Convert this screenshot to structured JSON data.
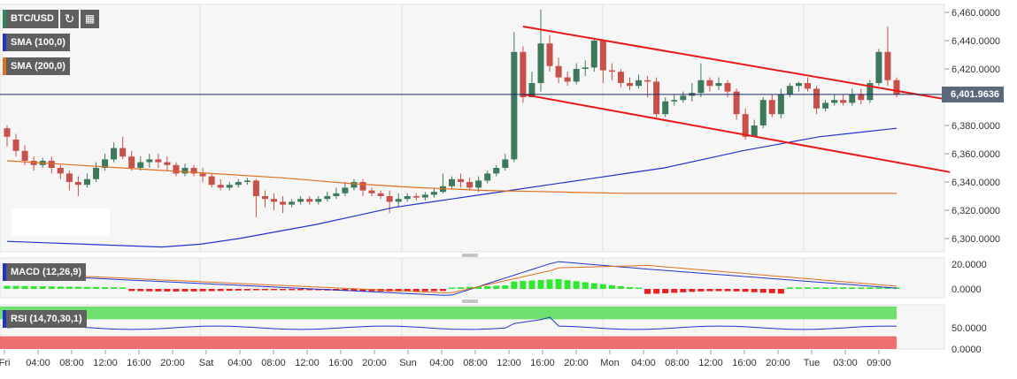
{
  "header": {
    "symbol": "BTC/USD",
    "refresh_icon": "refresh-icon",
    "calendar_icon": "calendar-icon"
  },
  "indicators": {
    "sma100": {
      "label": "SMA (100,0)",
      "color": "#2233cc"
    },
    "sma200": {
      "label": "SMA (200,0)",
      "color": "#e07020"
    },
    "macd": {
      "label": "MACD (12,26,9)"
    },
    "rsi": {
      "label": "RSI (14,70,30,1)"
    }
  },
  "current_price": {
    "label": "6,401.9636",
    "value": 6401.9636
  },
  "chart_data": {
    "type": "candlestick",
    "price_axis": {
      "ticks": [
        6460,
        6440,
        6420,
        6400,
        6380,
        6360,
        6340,
        6320,
        6300
      ],
      "tick_labels": [
        "6,460.0000",
        "6,440.0000",
        "6,420.0000",
        "6,400.0000",
        "6,380.0000",
        "6,360.0000",
        "6,340.0000",
        "6,320.0000",
        "6,300.0000"
      ],
      "ylim": [
        6294,
        6464
      ]
    },
    "macd_axis": {
      "tick_labels": [
        "20.0000",
        "0.0000"
      ],
      "ticks": [
        20,
        0
      ]
    },
    "rsi_axis": {
      "tick_labels": [
        "50.0000",
        "0.0000"
      ],
      "ticks": [
        50,
        0
      ],
      "overbought": 70,
      "oversold": 30
    },
    "x_axis_labels": [
      "Fri",
      "04:00",
      "08:00",
      "12:00",
      "16:00",
      "20:00",
      "Sat",
      "04:00",
      "08:00",
      "12:00",
      "16:00",
      "20:00",
      "Sun",
      "04:00",
      "08:00",
      "12:00",
      "16:00",
      "20:00",
      "Mon",
      "04:00",
      "08:00",
      "12:00",
      "16:00",
      "20:00",
      "Tue",
      "03:00",
      "09:00"
    ],
    "bull_color": "#3d7a5c",
    "bear_color": "#c8504a",
    "candles": [
      [
        6378,
        6372,
        6380,
        6365
      ],
      [
        6370,
        6362,
        6374,
        6358
      ],
      [
        6362,
        6355,
        6366,
        6352
      ],
      [
        6355,
        6352,
        6358,
        6348
      ],
      [
        6352,
        6355,
        6357,
        6350
      ],
      [
        6355,
        6350,
        6358,
        6346
      ],
      [
        6350,
        6346,
        6352,
        6342
      ],
      [
        6346,
        6340,
        6348,
        6334
      ],
      [
        6340,
        6338,
        6344,
        6330
      ],
      [
        6338,
        6342,
        6346,
        6336
      ],
      [
        6342,
        6350,
        6354,
        6340
      ],
      [
        6350,
        6356,
        6360,
        6348
      ],
      [
        6356,
        6364,
        6368,
        6354
      ],
      [
        6364,
        6358,
        6372,
        6356
      ],
      [
        6358,
        6350,
        6362,
        6348
      ],
      [
        6350,
        6354,
        6358,
        6348
      ],
      [
        6354,
        6356,
        6360,
        6350
      ],
      [
        6356,
        6354,
        6360,
        6350
      ],
      [
        6354,
        6352,
        6358,
        6348
      ],
      [
        6352,
        6346,
        6354,
        6344
      ],
      [
        6346,
        6350,
        6353,
        6344
      ],
      [
        6350,
        6346,
        6352,
        6344
      ],
      [
        6346,
        6344,
        6350,
        6340
      ],
      [
        6344,
        6338,
        6346,
        6336
      ],
      [
        6338,
        6336,
        6342,
        6334
      ],
      [
        6336,
        6338,
        6340,
        6334
      ],
      [
        6338,
        6340,
        6342,
        6336
      ],
      [
        6340,
        6341,
        6343,
        6338
      ],
      [
        6341,
        6330,
        6342,
        6315
      ],
      [
        6330,
        6328,
        6334,
        6322
      ],
      [
        6328,
        6326,
        6332,
        6320
      ],
      [
        6326,
        6324,
        6330,
        6318
      ],
      [
        6324,
        6326,
        6328,
        6322
      ],
      [
        6326,
        6328,
        6330,
        6324
      ],
      [
        6328,
        6326,
        6330,
        6324
      ],
      [
        6326,
        6328,
        6330,
        6324
      ],
      [
        6328,
        6330,
        6333,
        6326
      ],
      [
        6330,
        6332,
        6336,
        6328
      ],
      [
        6332,
        6336,
        6340,
        6330
      ],
      [
        6336,
        6340,
        6342,
        6334
      ],
      [
        6340,
        6334,
        6342,
        6330
      ],
      [
        6334,
        6332,
        6336,
        6330
      ],
      [
        6332,
        6330,
        6334,
        6328
      ],
      [
        6330,
        6326,
        6334,
        6318
      ],
      [
        6326,
        6328,
        6332,
        6322
      ],
      [
        6328,
        6330,
        6332,
        6326
      ],
      [
        6330,
        6329,
        6332,
        6327
      ],
      [
        6329,
        6331,
        6333,
        6327
      ],
      [
        6331,
        6333,
        6336,
        6329
      ],
      [
        6333,
        6337,
        6346,
        6332
      ],
      [
        6337,
        6342,
        6344,
        6335
      ],
      [
        6342,
        6340,
        6346,
        6336
      ],
      [
        6340,
        6336,
        6343,
        6334
      ],
      [
        6336,
        6341,
        6344,
        6333
      ],
      [
        6341,
        6346,
        6348,
        6339
      ],
      [
        6346,
        6350,
        6352,
        6344
      ],
      [
        6350,
        6356,
        6360,
        6348
      ],
      [
        6356,
        6432,
        6446,
        6354
      ],
      [
        6432,
        6400,
        6436,
        6396
      ],
      [
        6400,
        6410,
        6418,
        6400
      ],
      [
        6410,
        6438,
        6462,
        6404
      ],
      [
        6438,
        6422,
        6444,
        6418
      ],
      [
        6422,
        6414,
        6428,
        6410
      ],
      [
        6414,
        6411,
        6418,
        6408
      ],
      [
        6411,
        6420,
        6424,
        6409
      ],
      [
        6420,
        6421,
        6426,
        6415
      ],
      [
        6421,
        6440,
        6442,
        6418
      ],
      [
        6440,
        6419,
        6441,
        6410
      ],
      [
        6419,
        6418,
        6424,
        6412
      ],
      [
        6418,
        6410,
        6420,
        6407
      ],
      [
        6410,
        6408,
        6414,
        6405
      ],
      [
        6408,
        6412,
        6416,
        6406
      ],
      [
        6412,
        6411,
        6415,
        6400
      ],
      [
        6411,
        6388,
        6414,
        6386
      ],
      [
        6388,
        6397,
        6400,
        6386
      ],
      [
        6397,
        6398,
        6402,
        6394
      ],
      [
        6398,
        6401,
        6404,
        6396
      ],
      [
        6401,
        6403,
        6410,
        6397
      ],
      [
        6403,
        6412,
        6424,
        6400
      ],
      [
        6412,
        6408,
        6414,
        6404
      ],
      [
        6408,
        6410,
        6414,
        6405
      ],
      [
        6410,
        6404,
        6412,
        6400
      ],
      [
        6404,
        6388,
        6406,
        6384
      ],
      [
        6388,
        6372,
        6392,
        6370
      ],
      [
        6372,
        6380,
        6384,
        6372
      ],
      [
        6380,
        6398,
        6400,
        6378
      ],
      [
        6398,
        6388,
        6402,
        6386
      ],
      [
        6388,
        6402,
        6406,
        6385
      ],
      [
        6402,
        6408,
        6410,
        6400
      ],
      [
        6408,
        6410,
        6411,
        6404
      ],
      [
        6410,
        6406,
        6414,
        6404
      ],
      [
        6406,
        6392,
        6408,
        6388
      ],
      [
        6392,
        6396,
        6398,
        6390
      ],
      [
        6396,
        6398,
        6402,
        6394
      ],
      [
        6398,
        6396,
        6402,
        6394
      ],
      [
        6396,
        6402,
        6406,
        6394
      ],
      [
        6402,
        6398,
        6406,
        6395
      ],
      [
        6398,
        6410,
        6412,
        6396
      ],
      [
        6410,
        6432,
        6434,
        6408
      ],
      [
        6432,
        6412,
        6450,
        6408
      ],
      [
        6412,
        6402,
        6414,
        6400
      ]
    ],
    "sma100": [
      6298,
      6297,
      6296,
      6295,
      6294,
      6296,
      6300,
      6305,
      6310,
      6316,
      6322,
      6326,
      6330,
      6334,
      6338,
      6342,
      6346,
      6350,
      6356,
      6362,
      6367,
      6372,
      6375,
      6378
    ],
    "sma200": [
      6355,
      6352,
      6349,
      6346,
      6343,
      6339,
      6336,
      6334,
      6333,
      6332,
      6332,
      6332,
      6332,
      6332
    ],
    "trendlines": [
      {
        "from": [
          58,
          6450
        ],
        "to": [
          106,
          6398
        ]
      },
      {
        "from": [
          58,
          6402
        ],
        "to": [
          106,
          6347
        ]
      }
    ]
  }
}
